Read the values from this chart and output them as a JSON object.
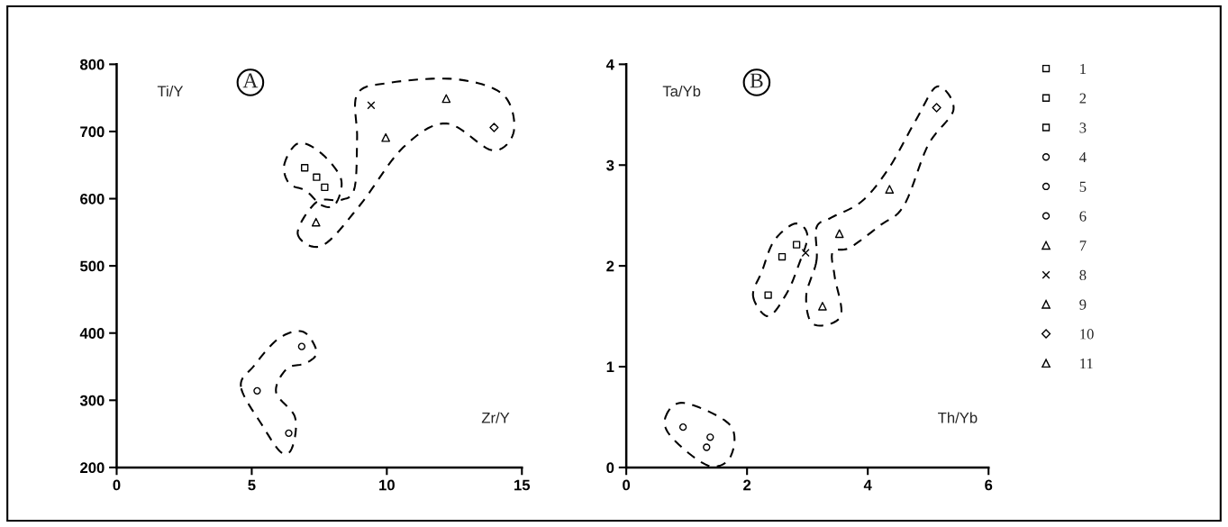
{
  "chart_data": [
    {
      "type": "scatter",
      "title": "A",
      "xlabel": "Zr/Y",
      "ylabel": "Ti/Y",
      "xlim": [
        0,
        15
      ],
      "ylim": [
        200,
        800
      ],
      "xticks": [
        0,
        5,
        10,
        15
      ],
      "yticks": [
        200,
        300,
        400,
        500,
        600,
        700,
        800
      ],
      "legend": false,
      "series": [
        {
          "color": "#000000",
          "marker": "square",
          "x": [
            7.7
          ],
          "values": [
            617
          ]
        },
        {
          "color": "#000000",
          "marker": "square",
          "x": [
            7.4
          ],
          "values": [
            632
          ]
        },
        {
          "color": "#000000",
          "marker": "square",
          "x": [
            6.96
          ],
          "values": [
            646
          ]
        },
        {
          "color": "#000000",
          "marker": "circle",
          "x": [
            5.2
          ],
          "values": [
            314
          ]
        },
        {
          "color": "#000000",
          "marker": "circle",
          "x": [
            6.85
          ],
          "values": [
            380
          ]
        },
        {
          "color": "#000000",
          "marker": "circle",
          "x": [
            6.37
          ],
          "values": [
            251
          ]
        },
        {
          "color": "#000000",
          "marker": "triangle",
          "x": [
            7.38
          ],
          "values": [
            565
          ]
        },
        {
          "color": "#000000",
          "marker": "cross",
          "x": [
            9.42
          ],
          "values": [
            739
          ]
        },
        {
          "color": "#000000",
          "marker": "triangle",
          "x": [
            9.96
          ],
          "values": [
            691
          ]
        },
        {
          "color": "#000000",
          "marker": "diamond",
          "x": [
            13.97
          ],
          "values": [
            706
          ]
        },
        {
          "color": "#000000",
          "marker": "triangle",
          "x": [
            12.2
          ],
          "values": [
            749
          ]
        }
      ]
    },
    {
      "type": "scatter",
      "title": "B",
      "xlabel": "Th/Yb",
      "ylabel": "Ta/Yb",
      "xlim": [
        0,
        6
      ],
      "ylim": [
        0,
        4
      ],
      "xticks": [
        0,
        2,
        4,
        6
      ],
      "yticks": [
        0,
        1,
        2,
        3,
        4
      ],
      "legend": "right",
      "series": [
        {
          "name": "1",
          "color": "#000000",
          "marker": "square",
          "x": [
            2.82
          ],
          "values": [
            2.21
          ]
        },
        {
          "name": "2",
          "color": "#000000",
          "marker": "square",
          "x": [
            2.58
          ],
          "values": [
            2.09
          ]
        },
        {
          "name": "3",
          "color": "#000000",
          "marker": "square",
          "x": [
            2.35
          ],
          "values": [
            1.71
          ]
        },
        {
          "name": "4",
          "color": "#000000",
          "marker": "circle",
          "x": [
            0.94
          ],
          "values": [
            0.4
          ]
        },
        {
          "name": "5",
          "color": "#000000",
          "marker": "circle",
          "x": [
            1.39
          ],
          "values": [
            0.3
          ]
        },
        {
          "name": "6",
          "color": "#000000",
          "marker": "circle",
          "x": [
            1.33
          ],
          "values": [
            0.2
          ]
        },
        {
          "name": "7",
          "color": "#000000",
          "marker": "triangle",
          "x": [
            3.25
          ],
          "values": [
            1.6
          ]
        },
        {
          "name": "8",
          "color": "#000000",
          "marker": "cross",
          "x": [
            2.97
          ],
          "values": [
            2.13
          ]
        },
        {
          "name": "9",
          "color": "#000000",
          "marker": "triangle",
          "x": [
            3.53
          ],
          "values": [
            2.32
          ]
        },
        {
          "name": "10",
          "color": "#000000",
          "marker": "diamond",
          "x": [
            5.14
          ],
          "values": [
            3.57
          ]
        },
        {
          "name": "11",
          "color": "#000000",
          "marker": "triangle",
          "x": [
            4.36
          ],
          "values": [
            2.76
          ]
        }
      ]
    }
  ]
}
